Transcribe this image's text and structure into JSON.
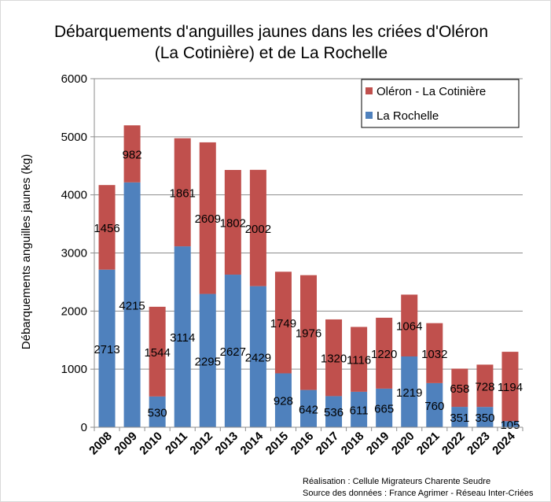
{
  "chart_data": {
    "type": "bar",
    "stacked": true,
    "title_lines": [
      "Débarquements d'anguilles jaunes dans les criées d'Oléron",
      "(La Cotinière)  et de La Rochelle"
    ],
    "xlabel": "",
    "ylabel": "Débarquements anguilles jaunes (kg)",
    "ylim": [
      0,
      6000
    ],
    "yticks": [
      0,
      1000,
      2000,
      3000,
      4000,
      5000,
      6000
    ],
    "grid": true,
    "legend_position": "top-right",
    "categories": [
      "2008",
      "2009",
      "2010",
      "2011",
      "2012",
      "2013",
      "2014",
      "2015",
      "2016",
      "2017",
      "2018",
      "2019",
      "2020",
      "2021",
      "2022",
      "2023",
      "2024"
    ],
    "series": [
      {
        "name": "La Rochelle",
        "color": "#4f81bd",
        "values": [
          2713,
          4215,
          530,
          3114,
          2295,
          2627,
          2429,
          928,
          642,
          536,
          611,
          665,
          1219,
          760,
          351,
          350,
          105
        ]
      },
      {
        "name": "Oléron - La Cotinière",
        "color": "#c0504d",
        "values": [
          1456,
          982,
          1544,
          1861,
          2609,
          1802,
          2002,
          1749,
          1976,
          1320,
          1116,
          1220,
          1064,
          1032,
          658,
          728,
          1194
        ]
      }
    ],
    "legend_order": [
      "Oléron - La Cotinière",
      "La Rochelle"
    ],
    "credits": [
      "Réalisation : Cellule Migrateurs Charente Seudre",
      "Source des données : France Agrimer - Réseau Inter-Criées"
    ]
  }
}
